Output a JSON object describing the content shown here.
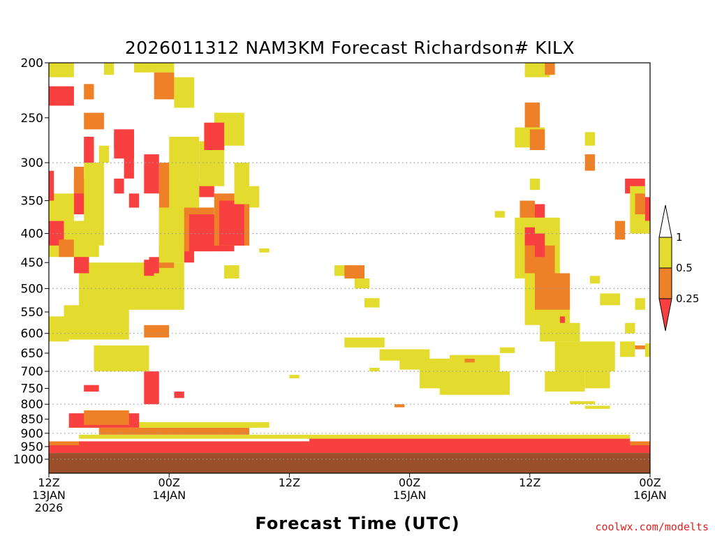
{
  "chart_data": {
    "type": "heatmap",
    "title": "2026011312 NAM3KM Forecast Richardson# KILX",
    "xlabel": "Forecast Time (UTC)",
    "ylabel": "",
    "credit": "coolwx.com/modelts",
    "x_range_hours": [
      0,
      60
    ],
    "x_ticks": [
      {
        "hour": 0,
        "lines": [
          "12Z",
          "13JAN",
          "2026"
        ]
      },
      {
        "hour": 12,
        "lines": [
          "00Z",
          "14JAN"
        ]
      },
      {
        "hour": 24,
        "lines": [
          "12Z"
        ]
      },
      {
        "hour": 36,
        "lines": [
          "00Z",
          "15JAN"
        ]
      },
      {
        "hour": 48,
        "lines": [
          "12Z"
        ]
      },
      {
        "hour": 60,
        "lines": [
          "00Z",
          "16JAN"
        ]
      }
    ],
    "y_axis_mb": [
      200,
      1000
    ],
    "y_ticks": [
      200,
      250,
      300,
      350,
      400,
      450,
      500,
      550,
      600,
      650,
      700,
      750,
      800,
      850,
      900,
      950,
      1000
    ],
    "gridlines_mb": [
      300,
      400,
      500,
      600,
      700,
      800,
      900,
      1000
    ],
    "colorbar": {
      "labels": [
        "1",
        "0.5",
        "0.25"
      ],
      "colors": {
        "low": "#f94040",
        "mid": "#ee8027",
        "high": "#e3dc2e",
        "ground": "#9a4f2a"
      }
    },
    "ground_pressure_mb": 975,
    "regions": [
      {
        "class": "low",
        "t": [
          0,
          60
        ],
        "p": [
          945,
          975
        ]
      },
      {
        "class": "mid",
        "t": [
          0,
          60
        ],
        "p": [
          930,
          945
        ]
      },
      {
        "class": "low",
        "t": [
          3,
          26
        ],
        "p": [
          930,
          948
        ]
      },
      {
        "class": "low",
        "t": [
          26,
          58
        ],
        "p": [
          915,
          948
        ]
      },
      {
        "class": "high",
        "t": [
          3,
          58
        ],
        "p": [
          905,
          920
        ]
      },
      {
        "class": "mid",
        "t": [
          5,
          20
        ],
        "p": [
          880,
          905
        ]
      },
      {
        "class": "high",
        "t": [
          2,
          22
        ],
        "p": [
          860,
          880
        ]
      },
      {
        "class": "low",
        "t": [
          2,
          9
        ],
        "p": [
          830,
          880
        ]
      },
      {
        "class": "mid",
        "t": [
          3.5,
          8
        ],
        "p": [
          820,
          870
        ]
      },
      {
        "class": "low",
        "t": [
          3.5,
          5
        ],
        "p": [
          740,
          760
        ]
      },
      {
        "class": "low",
        "t": [
          9.5,
          11
        ],
        "p": [
          700,
          800
        ]
      },
      {
        "class": "low",
        "t": [
          12.5,
          13.5
        ],
        "p": [
          760,
          780
        ]
      },
      {
        "class": "low",
        "t": [
          4.5,
          9.5
        ],
        "p": [
          640,
          690
        ]
      },
      {
        "class": "high",
        "t": [
          4.5,
          10
        ],
        "p": [
          630,
          700
        ]
      },
      {
        "class": "high",
        "t": [
          0,
          2
        ],
        "p": [
          560,
          620
        ]
      },
      {
        "class": "low",
        "t": [
          2.5,
          5.5
        ],
        "p": [
          565,
          600
        ]
      },
      {
        "class": "high",
        "t": [
          1.5,
          8
        ],
        "p": [
          535,
          615
        ]
      },
      {
        "class": "mid",
        "t": [
          9.5,
          12
        ],
        "p": [
          580,
          610
        ]
      },
      {
        "class": "mid",
        "t": [
          7.5,
          9
        ],
        "p": [
          495,
          535
        ]
      },
      {
        "class": "mid",
        "t": [
          4.5,
          8.5
        ],
        "p": [
          470,
          505
        ]
      },
      {
        "class": "high",
        "t": [
          3,
          13.5
        ],
        "p": [
          450,
          545
        ]
      },
      {
        "class": "low",
        "t": [
          9.5,
          10.5
        ],
        "p": [
          445,
          475
        ]
      },
      {
        "class": "low",
        "t": [
          2.5,
          4
        ],
        "p": [
          430,
          470
        ]
      },
      {
        "class": "mid",
        "t": [
          11,
          12.5
        ],
        "p": [
          420,
          460
        ]
      },
      {
        "class": "low",
        "t": [
          13.5,
          14.5
        ],
        "p": [
          410,
          450
        ]
      },
      {
        "class": "high",
        "t": [
          0,
          5
        ],
        "p": [
          380,
          440
        ]
      },
      {
        "class": "low",
        "t": [
          0,
          1.5
        ],
        "p": [
          380,
          420
        ]
      },
      {
        "class": "mid",
        "t": [
          1,
          2.5
        ],
        "p": [
          410,
          440
        ]
      },
      {
        "class": "high",
        "t": [
          0,
          2.5
        ],
        "p": [
          340,
          380
        ]
      },
      {
        "class": "low",
        "t": [
          2.5,
          4
        ],
        "p": [
          320,
          370
        ]
      },
      {
        "class": "mid",
        "t": [
          2.5,
          3.5
        ],
        "p": [
          305,
          340
        ]
      },
      {
        "class": "low",
        "t": [
          0,
          0.5
        ],
        "p": [
          310,
          350
        ]
      },
      {
        "class": "high",
        "t": [
          3.5,
          5.5
        ],
        "p": [
          300,
          420
        ]
      },
      {
        "class": "low",
        "t": [
          3.5,
          4.5
        ],
        "p": [
          270,
          300
        ]
      },
      {
        "class": "low",
        "t": [
          6.5,
          8.5
        ],
        "p": [
          265,
          295
        ]
      },
      {
        "class": "low",
        "t": [
          7.5,
          8.5
        ],
        "p": [
          290,
          320
        ]
      },
      {
        "class": "low",
        "t": [
          6.5,
          7.5
        ],
        "p": [
          320,
          340
        ]
      },
      {
        "class": "low",
        "t": [
          8,
          9
        ],
        "p": [
          340,
          360
        ]
      },
      {
        "class": "high",
        "t": [
          5,
          6
        ],
        "p": [
          280,
          300
        ]
      },
      {
        "class": "low",
        "t": [
          9.5,
          11
        ],
        "p": [
          290,
          340
        ]
      },
      {
        "class": "mid",
        "t": [
          11,
          12.5
        ],
        "p": [
          300,
          440
        ]
      },
      {
        "class": "high",
        "t": [
          11,
          13.5
        ],
        "p": [
          360,
          450
        ]
      },
      {
        "class": "low",
        "t": [
          10,
          11
        ],
        "p": [
          440,
          470
        ]
      },
      {
        "class": "mid",
        "t": [
          12.5,
          13.5
        ],
        "p": [
          290,
          330
        ]
      },
      {
        "class": "high",
        "t": [
          12.5,
          14
        ],
        "p": [
          330,
          420
        ]
      },
      {
        "class": "mid",
        "t": [
          13.5,
          16.5
        ],
        "p": [
          360,
          430
        ]
      },
      {
        "class": "low",
        "t": [
          14,
          18.5
        ],
        "p": [
          370,
          430
        ]
      },
      {
        "class": "mid",
        "t": [
          16.5,
          20
        ],
        "p": [
          340,
          420
        ]
      },
      {
        "class": "low",
        "t": [
          17,
          19.5
        ],
        "p": [
          350,
          420
        ]
      },
      {
        "class": "high",
        "t": [
          12,
          15
        ],
        "p": [
          270,
          360
        ]
      },
      {
        "class": "low",
        "t": [
          15,
          16.5
        ],
        "p": [
          325,
          345
        ]
      },
      {
        "class": "high",
        "t": [
          15,
          17.5
        ],
        "p": [
          275,
          330
        ]
      },
      {
        "class": "high",
        "t": [
          16.5,
          19.5
        ],
        "p": [
          245,
          280
        ]
      },
      {
        "class": "low",
        "t": [
          15.5,
          17.5
        ],
        "p": [
          255,
          285
        ]
      },
      {
        "class": "high",
        "t": [
          18.5,
          20
        ],
        "p": [
          300,
          355
        ]
      },
      {
        "class": "high",
        "t": [
          20,
          21
        ],
        "p": [
          330,
          360
        ]
      },
      {
        "class": "high",
        "t": [
          17.5,
          19
        ],
        "p": [
          455,
          480
        ]
      },
      {
        "class": "high",
        "t": [
          0,
          2.5
        ],
        "p": [
          200,
          212
        ]
      },
      {
        "class": "low",
        "t": [
          0,
          2.5
        ],
        "p": [
          220,
          238
        ]
      },
      {
        "class": "mid",
        "t": [
          3.5,
          4.5
        ],
        "p": [
          218,
          232
        ]
      },
      {
        "class": "mid",
        "t": [
          3.5,
          5.5
        ],
        "p": [
          245,
          262
        ]
      },
      {
        "class": "high",
        "t": [
          5.5,
          6.5
        ],
        "p": [
          200,
          210
        ]
      },
      {
        "class": "low",
        "t": [
          6.5,
          8.5
        ],
        "p": [
          262,
          285
        ]
      },
      {
        "class": "high",
        "t": [
          8.5,
          9.5
        ],
        "p": [
          200,
          208
        ]
      },
      {
        "class": "high",
        "t": [
          9,
          12.5
        ],
        "p": [
          200,
          208
        ]
      },
      {
        "class": "mid",
        "t": [
          10.5,
          12.5
        ],
        "p": [
          208,
          232
        ]
      },
      {
        "class": "high",
        "t": [
          12.5,
          14.5
        ],
        "p": [
          212,
          240
        ]
      },
      {
        "class": "high",
        "t": [
          21,
          22
        ],
        "p": [
          425,
          432
        ]
      },
      {
        "class": "high",
        "t": [
          32,
          33
        ],
        "p": [
          690,
          700
        ]
      },
      {
        "class": "high",
        "t": [
          24,
          25
        ],
        "p": [
          710,
          720
        ]
      },
      {
        "class": "high",
        "t": [
          28.5,
          30.5
        ],
        "p": [
          455,
          475
        ]
      },
      {
        "class": "mid",
        "t": [
          29.5,
          31.5
        ],
        "p": [
          455,
          480
        ]
      },
      {
        "class": "high",
        "t": [
          30.5,
          32
        ],
        "p": [
          480,
          500
        ]
      },
      {
        "class": "high",
        "t": [
          31.5,
          33
        ],
        "p": [
          520,
          540
        ]
      },
      {
        "class": "high",
        "t": [
          29.5,
          33.5
        ],
        "p": [
          610,
          635
        ]
      },
      {
        "class": "high",
        "t": [
          33,
          38
        ],
        "p": [
          640,
          670
        ]
      },
      {
        "class": "high",
        "t": [
          35,
          41
        ],
        "p": [
          665,
          695
        ]
      },
      {
        "class": "high",
        "t": [
          37,
          44
        ],
        "p": [
          690,
          750
        ]
      },
      {
        "class": "high",
        "t": [
          39,
          46
        ],
        "p": [
          700,
          770
        ]
      },
      {
        "class": "high",
        "t": [
          40,
          45
        ],
        "p": [
          655,
          700
        ]
      },
      {
        "class": "mid",
        "t": [
          41.5,
          42.5
        ],
        "p": [
          665,
          675
        ]
      },
      {
        "class": "high",
        "t": [
          45,
          46.5
        ],
        "p": [
          635,
          650
        ]
      },
      {
        "class": "mid",
        "t": [
          34.5,
          35.5
        ],
        "p": [
          800,
          810
        ]
      },
      {
        "class": "high",
        "t": [
          47.5,
          50
        ],
        "p": [
          200,
          212
        ]
      },
      {
        "class": "mid",
        "t": [
          49.5,
          50.5
        ],
        "p": [
          200,
          210
        ]
      },
      {
        "class": "mid",
        "t": [
          47.5,
          49
        ],
        "p": [
          235,
          260
        ]
      },
      {
        "class": "high",
        "t": [
          46.5,
          49.5
        ],
        "p": [
          260,
          282
        ]
      },
      {
        "class": "mid",
        "t": [
          48,
          49.5
        ],
        "p": [
          262,
          285
        ]
      },
      {
        "class": "high",
        "t": [
          48,
          49
        ],
        "p": [
          320,
          335
        ]
      },
      {
        "class": "high",
        "t": [
          44.5,
          45.5
        ],
        "p": [
          365,
          375
        ]
      },
      {
        "class": "mid",
        "t": [
          47,
          48.5
        ],
        "p": [
          350,
          410
        ]
      },
      {
        "class": "low",
        "t": [
          48.5,
          49.5
        ],
        "p": [
          355,
          380
        ]
      },
      {
        "class": "high",
        "t": [
          46.5,
          51
        ],
        "p": [
          375,
          480
        ]
      },
      {
        "class": "low",
        "t": [
          47.5,
          48.5
        ],
        "p": [
          390,
          420
        ]
      },
      {
        "class": "mid",
        "t": [
          47.5,
          50.5
        ],
        "p": [
          420,
          470
        ]
      },
      {
        "class": "low",
        "t": [
          48.5,
          49.5
        ],
        "p": [
          400,
          440
        ]
      },
      {
        "class": "high",
        "t": [
          47.5,
          52
        ],
        "p": [
          470,
          580
        ]
      },
      {
        "class": "mid",
        "t": [
          48.5,
          52
        ],
        "p": [
          470,
          545
        ]
      },
      {
        "class": "low",
        "t": [
          51,
          51.5
        ],
        "p": [
          560,
          580
        ]
      },
      {
        "class": "high",
        "t": [
          49,
          53
        ],
        "p": [
          575,
          620
        ]
      },
      {
        "class": "high",
        "t": [
          50.5,
          56.5
        ],
        "p": [
          620,
          700
        ]
      },
      {
        "class": "high",
        "t": [
          53.5,
          56
        ],
        "p": [
          690,
          750
        ]
      },
      {
        "class": "high",
        "t": [
          49.5,
          53.5
        ],
        "p": [
          700,
          760
        ]
      },
      {
        "class": "high",
        "t": [
          52,
          54.5
        ],
        "p": [
          790,
          800
        ]
      },
      {
        "class": "high",
        "t": [
          53.5,
          56
        ],
        "p": [
          805,
          815
        ]
      },
      {
        "class": "high",
        "t": [
          53.5,
          54.5
        ],
        "p": [
          265,
          280
        ]
      },
      {
        "class": "mid",
        "t": [
          53.5,
          54.5
        ],
        "p": [
          290,
          310
        ]
      },
      {
        "class": "high",
        "t": [
          54,
          55
        ],
        "p": [
          475,
          490
        ]
      },
      {
        "class": "high",
        "t": [
          55,
          57
        ],
        "p": [
          510,
          535
        ]
      },
      {
        "class": "high",
        "t": [
          57.5,
          58.5
        ],
        "p": [
          575,
          600
        ]
      },
      {
        "class": "high",
        "t": [
          58.5,
          59.5
        ],
        "p": [
          520,
          545
        ]
      },
      {
        "class": "mid",
        "t": [
          58.5,
          59.5
        ],
        "p": [
          630,
          640
        ]
      },
      {
        "class": "high",
        "t": [
          57,
          58.5
        ],
        "p": [
          620,
          660
        ]
      },
      {
        "class": "high",
        "t": [
          59.5,
          60
        ],
        "p": [
          625,
          660
        ]
      },
      {
        "class": "low",
        "t": [
          57.5,
          59.5
        ],
        "p": [
          320,
          340
        ]
      },
      {
        "class": "high",
        "t": [
          58,
          59.5
        ],
        "p": [
          330,
          400
        ]
      },
      {
        "class": "mid",
        "t": [
          58.5,
          59.5
        ],
        "p": [
          340,
          370
        ]
      },
      {
        "class": "low",
        "t": [
          59.5,
          60
        ],
        "p": [
          345,
          380
        ]
      },
      {
        "class": "mid",
        "t": [
          56.5,
          57.5
        ],
        "p": [
          380,
          410
        ]
      },
      {
        "class": "high",
        "t": [
          58.5,
          60
        ],
        "p": [
          380,
          400
        ]
      }
    ]
  }
}
